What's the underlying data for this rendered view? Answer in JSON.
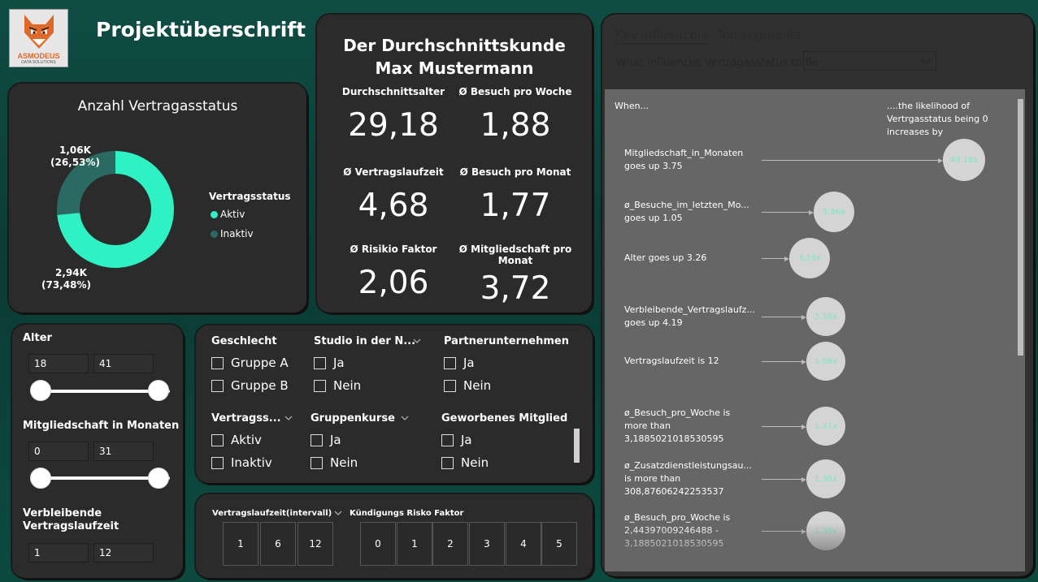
{
  "header": {
    "title": "Projektüberschrift",
    "logo_text": "ASMODEUS",
    "logo_subtext": "DATA SOLUTIONS"
  },
  "donut": {
    "title": "Anzahl Vertragasstatus",
    "legend_title": "Vertragsstatus",
    "legend": [
      "Aktiv",
      "Inaktiv"
    ],
    "label_inaktiv_value": "1,06K",
    "label_inaktiv_pct": "(26,53%)",
    "label_aktiv_value": "2,94K",
    "label_aktiv_pct": "(73,48%)",
    "colors": {
      "Aktiv": "#2ef2c4",
      "Inaktiv": "#2a6a62"
    }
  },
  "chart_data": {
    "type": "pie",
    "title": "Anzahl Vertragasstatus",
    "categories": [
      "Aktiv",
      "Inaktiv"
    ],
    "values": [
      2940,
      1060
    ],
    "percentages": [
      73.48,
      26.53
    ],
    "legend_title": "Vertragsstatus",
    "legend_position": "right"
  },
  "kpi": {
    "heading_line1": "Der Durchschnittskunde",
    "heading_line2": "Max Mustermann",
    "items": [
      {
        "label": "Durchschnittsalter",
        "value": "29,18"
      },
      {
        "label": "Ø Besuch pro Woche",
        "value": "1,88"
      },
      {
        "label": "Ø Vertragslaufzeit",
        "value": "4,68"
      },
      {
        "label": "Ø Besuch pro Monat",
        "value": "1,77"
      },
      {
        "label": "Ø Risikio Faktor",
        "value": "2,06"
      },
      {
        "label_line1": "Ø Mitgliedschaft pro",
        "label_line2": "Monat",
        "value": "3,72"
      }
    ]
  },
  "sliders": {
    "alter": {
      "title": "Alter",
      "min": "18",
      "max": "41"
    },
    "mitglied": {
      "title": "Mitgliedschaft in Monaten",
      "min": "0",
      "max": "31"
    },
    "verbleibend": {
      "title_line1": "Verbleibende",
      "title_line2": "Vertragslaufzeit",
      "min": "1",
      "max": "12"
    }
  },
  "filters": {
    "geschlecht": {
      "title": "Geschlecht",
      "options": [
        "Gruppe A",
        "Gruppe B"
      ]
    },
    "studio": {
      "title": "Studio in der N...",
      "options": [
        "Ja",
        "Nein"
      ]
    },
    "partner": {
      "title": "Partnerunternehmen",
      "options": [
        "Ja",
        "Nein"
      ]
    },
    "vertragsstatus": {
      "title": "Vertragss...",
      "options": [
        "Aktiv",
        "Inaktiv"
      ]
    },
    "gruppenkurse": {
      "title": "Gruppenkurse",
      "options": [
        "Ja",
        "Nein"
      ]
    },
    "geworben": {
      "title": "Geworbenes Mitglied",
      "options": [
        "Ja",
        "Nein"
      ]
    }
  },
  "tiles": {
    "laufzeit": {
      "title": "Vertragslaufzeit(intervall)",
      "values": [
        "1",
        "6",
        "12"
      ]
    },
    "risiko": {
      "title": "Kündigungs Risko Faktor",
      "values": [
        "0",
        "1",
        "2",
        "3",
        "4",
        "5"
      ]
    }
  },
  "key_influencers": {
    "tabs": [
      "Key influencers",
      "Top segments"
    ],
    "question": "What influences Vertragasstatus to be",
    "selected": "0",
    "when": "When...",
    "likelihood_line1": "....the likelihood of",
    "likelihood_line2": "Vertrgasstatus being 0",
    "likelihood_line3": "increases by",
    "rows": [
      {
        "l1": "Mitgliedschaft_in_Monaten",
        "l2": "goes up 3.75",
        "l3": "",
        "factor": "49,18x"
      },
      {
        "l1": "ø_Besuche_im_letzten_Mo...",
        "l2": "goes up 1.05",
        "l3": "",
        "factor": "3,56x"
      },
      {
        "l1": "Alter goes up 3.26",
        "l2": "",
        "l3": "",
        "factor": "3,19x"
      },
      {
        "l1": "Verbleibende_Vertragslaufz...",
        "l2": "goes up 4.19",
        "l3": "",
        "factor": "2,18x"
      },
      {
        "l1": "Vertragslaufzeit is 12",
        "l2": "",
        "l3": "",
        "factor": "1,66x"
      },
      {
        "l1": "ø_Besuch_pro_Woche is",
        "l2": "more than",
        "l3": "3,1885021018530595",
        "factor": "1,41x"
      },
      {
        "l1": "ø_Zusatzdienstleistungsau...",
        "l2": "is more than",
        "l3": "308,87606242253537",
        "factor": "1,38x"
      },
      {
        "l1": "ø_Besuch_pro_Woche is",
        "l2": "2,44397009246488 -",
        "l3": "3,1885021018530595",
        "factor": "1,35x"
      }
    ]
  }
}
